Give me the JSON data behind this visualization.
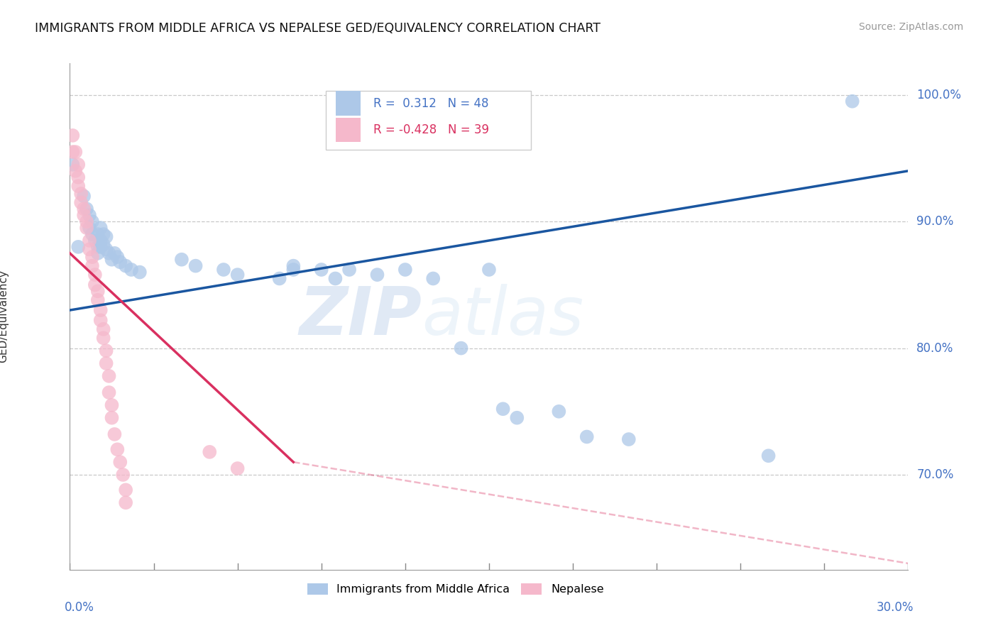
{
  "title": "IMMIGRANTS FROM MIDDLE AFRICA VS NEPALESE GED/EQUIVALENCY CORRELATION CHART",
  "source_text": "Source: ZipAtlas.com",
  "ylabel": "GED/Equivalency",
  "ytick_labels": [
    "70.0%",
    "80.0%",
    "90.0%",
    "100.0%"
  ],
  "ytick_values": [
    0.7,
    0.8,
    0.9,
    1.0
  ],
  "xmin": 0.0,
  "xmax": 0.3,
  "ymin": 0.625,
  "ymax": 1.025,
  "legend_text_blue": "R =  0.312   N = 48",
  "legend_text_pink": "R = -0.428   N = 39",
  "watermark_zip": "ZIP",
  "watermark_atlas": "atlas",
  "legend_label_blue": "Immigrants from Middle Africa",
  "legend_label_pink": "Nepalese",
  "blue_color": "#adc8e8",
  "pink_color": "#f5b8cb",
  "blue_line_color": "#1a56a0",
  "pink_line_color": "#d93060",
  "blue_dots": [
    [
      0.001,
      0.945
    ],
    [
      0.003,
      0.88
    ],
    [
      0.005,
      0.92
    ],
    [
      0.006,
      0.91
    ],
    [
      0.007,
      0.905
    ],
    [
      0.007,
      0.895
    ],
    [
      0.008,
      0.9
    ],
    [
      0.008,
      0.89
    ],
    [
      0.009,
      0.885
    ],
    [
      0.01,
      0.89
    ],
    [
      0.01,
      0.88
    ],
    [
      0.01,
      0.875
    ],
    [
      0.011,
      0.895
    ],
    [
      0.011,
      0.885
    ],
    [
      0.011,
      0.88
    ],
    [
      0.012,
      0.89
    ],
    [
      0.012,
      0.882
    ],
    [
      0.013,
      0.888
    ],
    [
      0.013,
      0.878
    ],
    [
      0.014,
      0.875
    ],
    [
      0.015,
      0.87
    ],
    [
      0.016,
      0.875
    ],
    [
      0.017,
      0.872
    ],
    [
      0.018,
      0.868
    ],
    [
      0.02,
      0.865
    ],
    [
      0.022,
      0.862
    ],
    [
      0.025,
      0.86
    ],
    [
      0.04,
      0.87
    ],
    [
      0.045,
      0.865
    ],
    [
      0.055,
      0.862
    ],
    [
      0.06,
      0.858
    ],
    [
      0.075,
      0.855
    ],
    [
      0.08,
      0.862
    ],
    [
      0.09,
      0.862
    ],
    [
      0.095,
      0.855
    ],
    [
      0.1,
      0.862
    ],
    [
      0.11,
      0.858
    ],
    [
      0.12,
      0.862
    ],
    [
      0.13,
      0.855
    ],
    [
      0.14,
      0.8
    ],
    [
      0.15,
      0.862
    ],
    [
      0.155,
      0.752
    ],
    [
      0.175,
      0.75
    ],
    [
      0.185,
      0.73
    ],
    [
      0.2,
      0.728
    ],
    [
      0.25,
      0.715
    ],
    [
      0.28,
      0.995
    ],
    [
      0.08,
      0.865
    ],
    [
      0.16,
      0.745
    ]
  ],
  "pink_dots": [
    [
      0.001,
      0.955
    ],
    [
      0.002,
      0.94
    ],
    [
      0.003,
      0.935
    ],
    [
      0.003,
      0.928
    ],
    [
      0.004,
      0.922
    ],
    [
      0.004,
      0.915
    ],
    [
      0.005,
      0.91
    ],
    [
      0.005,
      0.905
    ],
    [
      0.006,
      0.9
    ],
    [
      0.006,
      0.895
    ],
    [
      0.007,
      0.885
    ],
    [
      0.007,
      0.878
    ],
    [
      0.008,
      0.872
    ],
    [
      0.008,
      0.865
    ],
    [
      0.009,
      0.858
    ],
    [
      0.009,
      0.85
    ],
    [
      0.01,
      0.845
    ],
    [
      0.01,
      0.838
    ],
    [
      0.011,
      0.83
    ],
    [
      0.011,
      0.822
    ],
    [
      0.012,
      0.815
    ],
    [
      0.012,
      0.808
    ],
    [
      0.013,
      0.798
    ],
    [
      0.013,
      0.788
    ],
    [
      0.014,
      0.778
    ],
    [
      0.014,
      0.765
    ],
    [
      0.015,
      0.755
    ],
    [
      0.015,
      0.745
    ],
    [
      0.016,
      0.732
    ],
    [
      0.017,
      0.72
    ],
    [
      0.018,
      0.71
    ],
    [
      0.019,
      0.7
    ],
    [
      0.02,
      0.688
    ],
    [
      0.02,
      0.678
    ],
    [
      0.001,
      0.968
    ],
    [
      0.002,
      0.955
    ],
    [
      0.003,
      0.945
    ],
    [
      0.05,
      0.718
    ],
    [
      0.06,
      0.705
    ]
  ],
  "blue_trend": [
    0.0,
    0.3,
    0.83,
    0.94
  ],
  "pink_trend_solid": [
    0.0,
    0.08,
    0.875,
    0.71
  ],
  "pink_trend_dashed": [
    0.08,
    0.3,
    0.71,
    0.63
  ]
}
